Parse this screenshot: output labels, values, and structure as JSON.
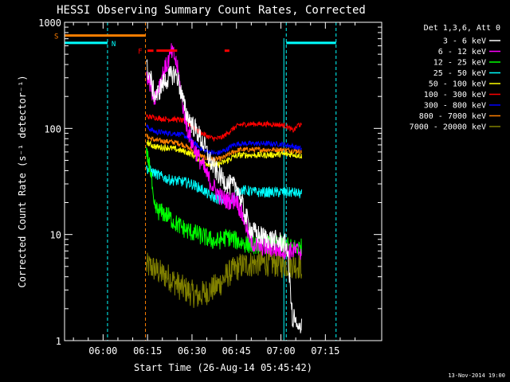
{
  "chart_data": {
    "type": "line",
    "title": "HESSI Observing Summary Count Rates, Corrected",
    "xlabel": "Start Time (26-Aug-14 05:45:42)",
    "ylabel": "Corrected Count Rate (s⁻¹ detector⁻¹)",
    "xlim_minutes": [
      -13,
      94
    ],
    "ylim": [
      1,
      1000
    ],
    "y_scale": "log",
    "x_ticks": [
      {
        "m": 0,
        "label": "06:00"
      },
      {
        "m": 15,
        "label": "06:15"
      },
      {
        "m": 30,
        "label": "06:30"
      },
      {
        "m": 45,
        "label": "06:45"
      },
      {
        "m": 60,
        "label": "07:00"
      },
      {
        "m": 75,
        "label": "07:15"
      }
    ],
    "y_ticks": [
      {
        "v": 1,
        "label": "1"
      },
      {
        "v": 10,
        "label": "10"
      },
      {
        "v": 100,
        "label": "100"
      },
      {
        "v": 1000,
        "label": "1000"
      }
    ],
    "legend_header": "Det 1,3,6, Att 0",
    "series": [
      {
        "name": "3 - 6 keV",
        "color": "#ffffff",
        "noise": 0.1,
        "points": [
          [
            14.6,
            380
          ],
          [
            16,
            300
          ],
          [
            17,
            220
          ],
          [
            18,
            200
          ],
          [
            20,
            260
          ],
          [
            22,
            300
          ],
          [
            24,
            330
          ],
          [
            25,
            310
          ],
          [
            26,
            240
          ],
          [
            27,
            180
          ],
          [
            28,
            140
          ],
          [
            30,
            110
          ],
          [
            32,
            90
          ],
          [
            34,
            70
          ],
          [
            36,
            50
          ],
          [
            38,
            40
          ],
          [
            40,
            34
          ],
          [
            42,
            30
          ],
          [
            44,
            28
          ],
          [
            45,
            30
          ],
          [
            46,
            24
          ],
          [
            47,
            19
          ],
          [
            48,
            15
          ],
          [
            49,
            13
          ],
          [
            50,
            11
          ],
          [
            52,
            10
          ],
          [
            54,
            9.5
          ],
          [
            57,
            9.0
          ],
          [
            60,
            8.5
          ],
          [
            62,
            8.0
          ],
          [
            63,
            3.5
          ],
          [
            63.5,
            2.5
          ],
          [
            64,
            1.3
          ],
          [
            64.5,
            1.8
          ],
          [
            65,
            1.4
          ],
          [
            66,
            1.2
          ],
          [
            67,
            1.5
          ]
        ]
      },
      {
        "name": "6 - 12 keV",
        "color": "#ff00ff",
        "noise": 0.09,
        "points": [
          [
            14.6,
            350
          ],
          [
            16,
            260
          ],
          [
            17,
            200
          ],
          [
            18,
            210
          ],
          [
            20,
            320
          ],
          [
            22,
            430
          ],
          [
            23,
            520
          ],
          [
            24,
            480
          ],
          [
            25,
            380
          ],
          [
            26,
            250
          ],
          [
            27,
            160
          ],
          [
            28,
            110
          ],
          [
            30,
            72
          ],
          [
            32,
            55
          ],
          [
            34,
            42
          ],
          [
            36,
            32
          ],
          [
            38,
            26
          ],
          [
            40,
            22
          ],
          [
            42,
            21
          ],
          [
            44,
            21
          ],
          [
            45,
            22
          ],
          [
            46,
            18
          ],
          [
            47,
            15
          ],
          [
            48,
            13
          ],
          [
            49,
            10
          ],
          [
            50,
            8.5
          ],
          [
            52,
            7.8
          ],
          [
            56,
            7.5
          ],
          [
            60,
            7.2
          ],
          [
            64,
            7.0
          ],
          [
            67,
            7.0
          ]
        ]
      },
      {
        "name": "12 - 25 keV",
        "color": "#00ff00",
        "noise": 0.09,
        "points": [
          [
            14.6,
            55
          ],
          [
            15.5,
            48
          ],
          [
            16,
            40
          ],
          [
            16.5,
            30
          ],
          [
            17,
            18
          ],
          [
            18,
            17
          ],
          [
            20,
            16
          ],
          [
            22,
            15
          ],
          [
            24,
            13
          ],
          [
            26,
            12
          ],
          [
            28,
            11
          ],
          [
            30,
            10.5
          ],
          [
            32,
            10
          ],
          [
            34,
            9.5
          ],
          [
            36,
            9.0
          ],
          [
            38,
            8.5
          ],
          [
            40,
            9.0
          ],
          [
            42,
            9.5
          ],
          [
            44,
            9.0
          ],
          [
            46,
            8.5
          ],
          [
            48,
            8.2
          ],
          [
            50,
            8.0
          ],
          [
            55,
            8.0
          ],
          [
            60,
            8.0
          ],
          [
            64,
            7.5
          ],
          [
            67,
            7.5
          ]
        ]
      },
      {
        "name": "25 - 50 keV",
        "color": "#00ffff",
        "noise": 0.05,
        "points": [
          [
            14.6,
            42
          ],
          [
            16,
            40
          ],
          [
            18,
            37
          ],
          [
            20,
            35
          ],
          [
            22,
            33
          ],
          [
            25,
            32
          ],
          [
            28,
            31
          ],
          [
            30,
            30
          ],
          [
            32,
            28
          ],
          [
            34,
            26
          ],
          [
            36,
            23
          ],
          [
            38,
            22
          ],
          [
            40,
            21
          ],
          [
            42,
            21
          ],
          [
            44,
            22
          ],
          [
            45,
            25
          ],
          [
            46,
            26
          ],
          [
            48,
            26
          ],
          [
            52,
            25
          ],
          [
            56,
            25
          ],
          [
            60,
            25
          ],
          [
            64,
            25
          ],
          [
            67,
            24
          ]
        ]
      },
      {
        "name": "50 - 100 keV",
        "color": "#ffff00",
        "noise": 0.03,
        "points": [
          [
            14.6,
            75
          ],
          [
            16,
            70
          ],
          [
            18,
            67
          ],
          [
            20,
            66
          ],
          [
            22,
            66
          ],
          [
            24,
            64
          ],
          [
            26,
            62
          ],
          [
            28,
            60
          ],
          [
            30,
            57
          ],
          [
            32,
            52
          ],
          [
            34,
            48
          ],
          [
            36,
            46
          ],
          [
            38,
            45
          ],
          [
            40,
            47
          ],
          [
            42,
            50
          ],
          [
            44,
            54
          ],
          [
            46,
            56
          ],
          [
            50,
            56
          ],
          [
            55,
            56
          ],
          [
            60,
            57
          ],
          [
            64,
            57
          ],
          [
            67,
            55
          ]
        ]
      },
      {
        "name": "100 - 300 keV",
        "color": "#ff0000",
        "noise": 0.025,
        "points": [
          [
            14.6,
            130
          ],
          [
            16,
            128
          ],
          [
            18,
            126
          ],
          [
            20,
            123
          ],
          [
            22,
            122
          ],
          [
            24,
            122
          ],
          [
            26,
            120
          ],
          [
            28,
            115
          ],
          [
            30,
            105
          ],
          [
            32,
            95
          ],
          [
            34,
            88
          ],
          [
            36,
            82
          ],
          [
            38,
            80
          ],
          [
            40,
            82
          ],
          [
            42,
            90
          ],
          [
            44,
            100
          ],
          [
            46,
            108
          ],
          [
            50,
            110
          ],
          [
            55,
            110
          ],
          [
            60,
            108
          ],
          [
            62,
            105
          ],
          [
            64,
            95
          ],
          [
            65,
            100
          ],
          [
            66,
            110
          ],
          [
            67,
            105
          ]
        ]
      },
      {
        "name": "300 - 800 keV",
        "color": "#0000ff",
        "noise": 0.025,
        "points": [
          [
            14.6,
            105
          ],
          [
            16,
            98
          ],
          [
            18,
            92
          ],
          [
            20,
            92
          ],
          [
            22,
            90
          ],
          [
            24,
            90
          ],
          [
            26,
            88
          ],
          [
            28,
            84
          ],
          [
            30,
            76
          ],
          [
            32,
            68
          ],
          [
            34,
            62
          ],
          [
            36,
            60
          ],
          [
            38,
            58
          ],
          [
            40,
            60
          ],
          [
            42,
            64
          ],
          [
            44,
            70
          ],
          [
            46,
            72
          ],
          [
            50,
            72
          ],
          [
            55,
            72
          ],
          [
            60,
            71
          ],
          [
            64,
            68
          ],
          [
            67,
            64
          ]
        ]
      },
      {
        "name": "800 - 7000 keV",
        "color": "#ff7f00",
        "noise": 0.025,
        "points": [
          [
            14.6,
            85
          ],
          [
            16,
            80
          ],
          [
            18,
            77
          ],
          [
            20,
            76
          ],
          [
            22,
            75
          ],
          [
            24,
            74
          ],
          [
            26,
            72
          ],
          [
            28,
            68
          ],
          [
            30,
            62
          ],
          [
            32,
            57
          ],
          [
            34,
            53
          ],
          [
            36,
            52
          ],
          [
            38,
            51
          ],
          [
            40,
            52
          ],
          [
            42,
            56
          ],
          [
            44,
            60
          ],
          [
            46,
            63
          ],
          [
            50,
            63
          ],
          [
            55,
            63
          ],
          [
            60,
            63
          ],
          [
            64,
            62
          ],
          [
            67,
            61
          ]
        ]
      },
      {
        "name": "7000 - 20000 keV",
        "color": "#808000",
        "noise": 0.13,
        "points": [
          [
            14.6,
            5.0
          ],
          [
            16,
            5.0
          ],
          [
            18,
            4.6
          ],
          [
            20,
            4.2
          ],
          [
            22,
            4.0
          ],
          [
            24,
            3.6
          ],
          [
            26,
            3.2
          ],
          [
            28,
            3.0
          ],
          [
            30,
            2.8
          ],
          [
            32,
            2.6
          ],
          [
            34,
            2.8
          ],
          [
            36,
            3.0
          ],
          [
            38,
            3.2
          ],
          [
            40,
            3.6
          ],
          [
            42,
            4.2
          ],
          [
            44,
            4.6
          ],
          [
            46,
            5.0
          ],
          [
            48,
            5.2
          ],
          [
            52,
            5.4
          ],
          [
            56,
            5.4
          ],
          [
            60,
            5.2
          ],
          [
            64,
            5.2
          ],
          [
            67,
            5.0
          ]
        ]
      }
    ],
    "vlines_orange": [
      14.3
    ],
    "vlines_cyan_dashed": [
      1.5,
      61.8,
      78.6
    ],
    "vlines_cyan_solid": [
      61.8
    ],
    "flags": [
      {
        "label": "S",
        "color": "#ff7f00",
        "value": 750,
        "segments": [
          [
            -13,
            14.3
          ]
        ]
      },
      {
        "label": "N",
        "color": "#00ffff",
        "value": 640,
        "segments": [
          [
            -13,
            1.5
          ],
          [
            61.8,
            78.6
          ]
        ]
      },
      {
        "label": "F",
        "color": "#ff0000",
        "value": 540,
        "segments": [
          [
            15,
            17
          ],
          [
            18,
            25
          ],
          [
            41,
            42.6
          ]
        ]
      }
    ],
    "footer_date": "13-Nov-2014 19:00"
  }
}
